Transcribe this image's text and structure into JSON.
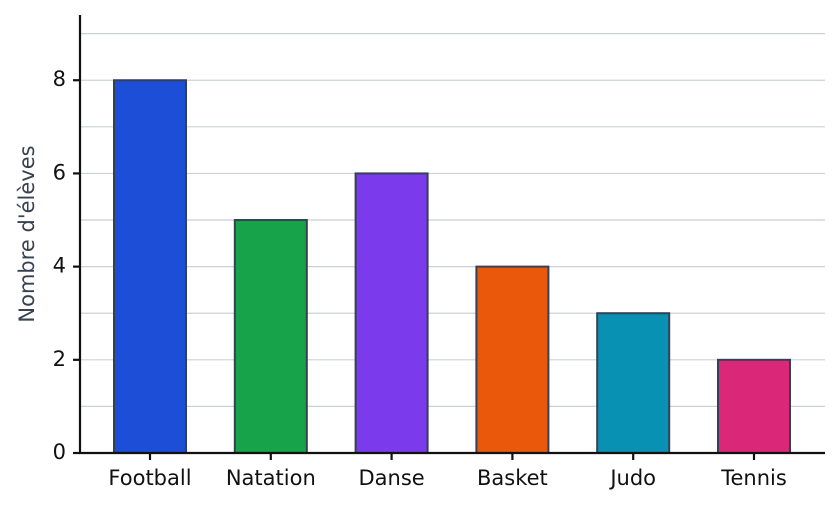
{
  "chart_data": {
    "type": "bar",
    "y_label": "Nombre d'élèves",
    "categories": [
      "Football",
      "Natation",
      "Danse",
      "Basket",
      "Judo",
      "Tennis"
    ],
    "values": [
      8,
      5,
      6,
      4,
      3,
      2
    ],
    "colors": [
      "#1d4ed8",
      "#16a34a",
      "#7c3aed",
      "#ea580c",
      "#0891b2",
      "#db2777"
    ],
    "edge_color": "#334155",
    "ylim": [
      0,
      9.4
    ],
    "yticks": [
      0,
      2,
      4,
      6,
      8
    ],
    "minor_yticks": [
      1,
      3,
      5,
      7,
      9
    ],
    "grid": true
  }
}
